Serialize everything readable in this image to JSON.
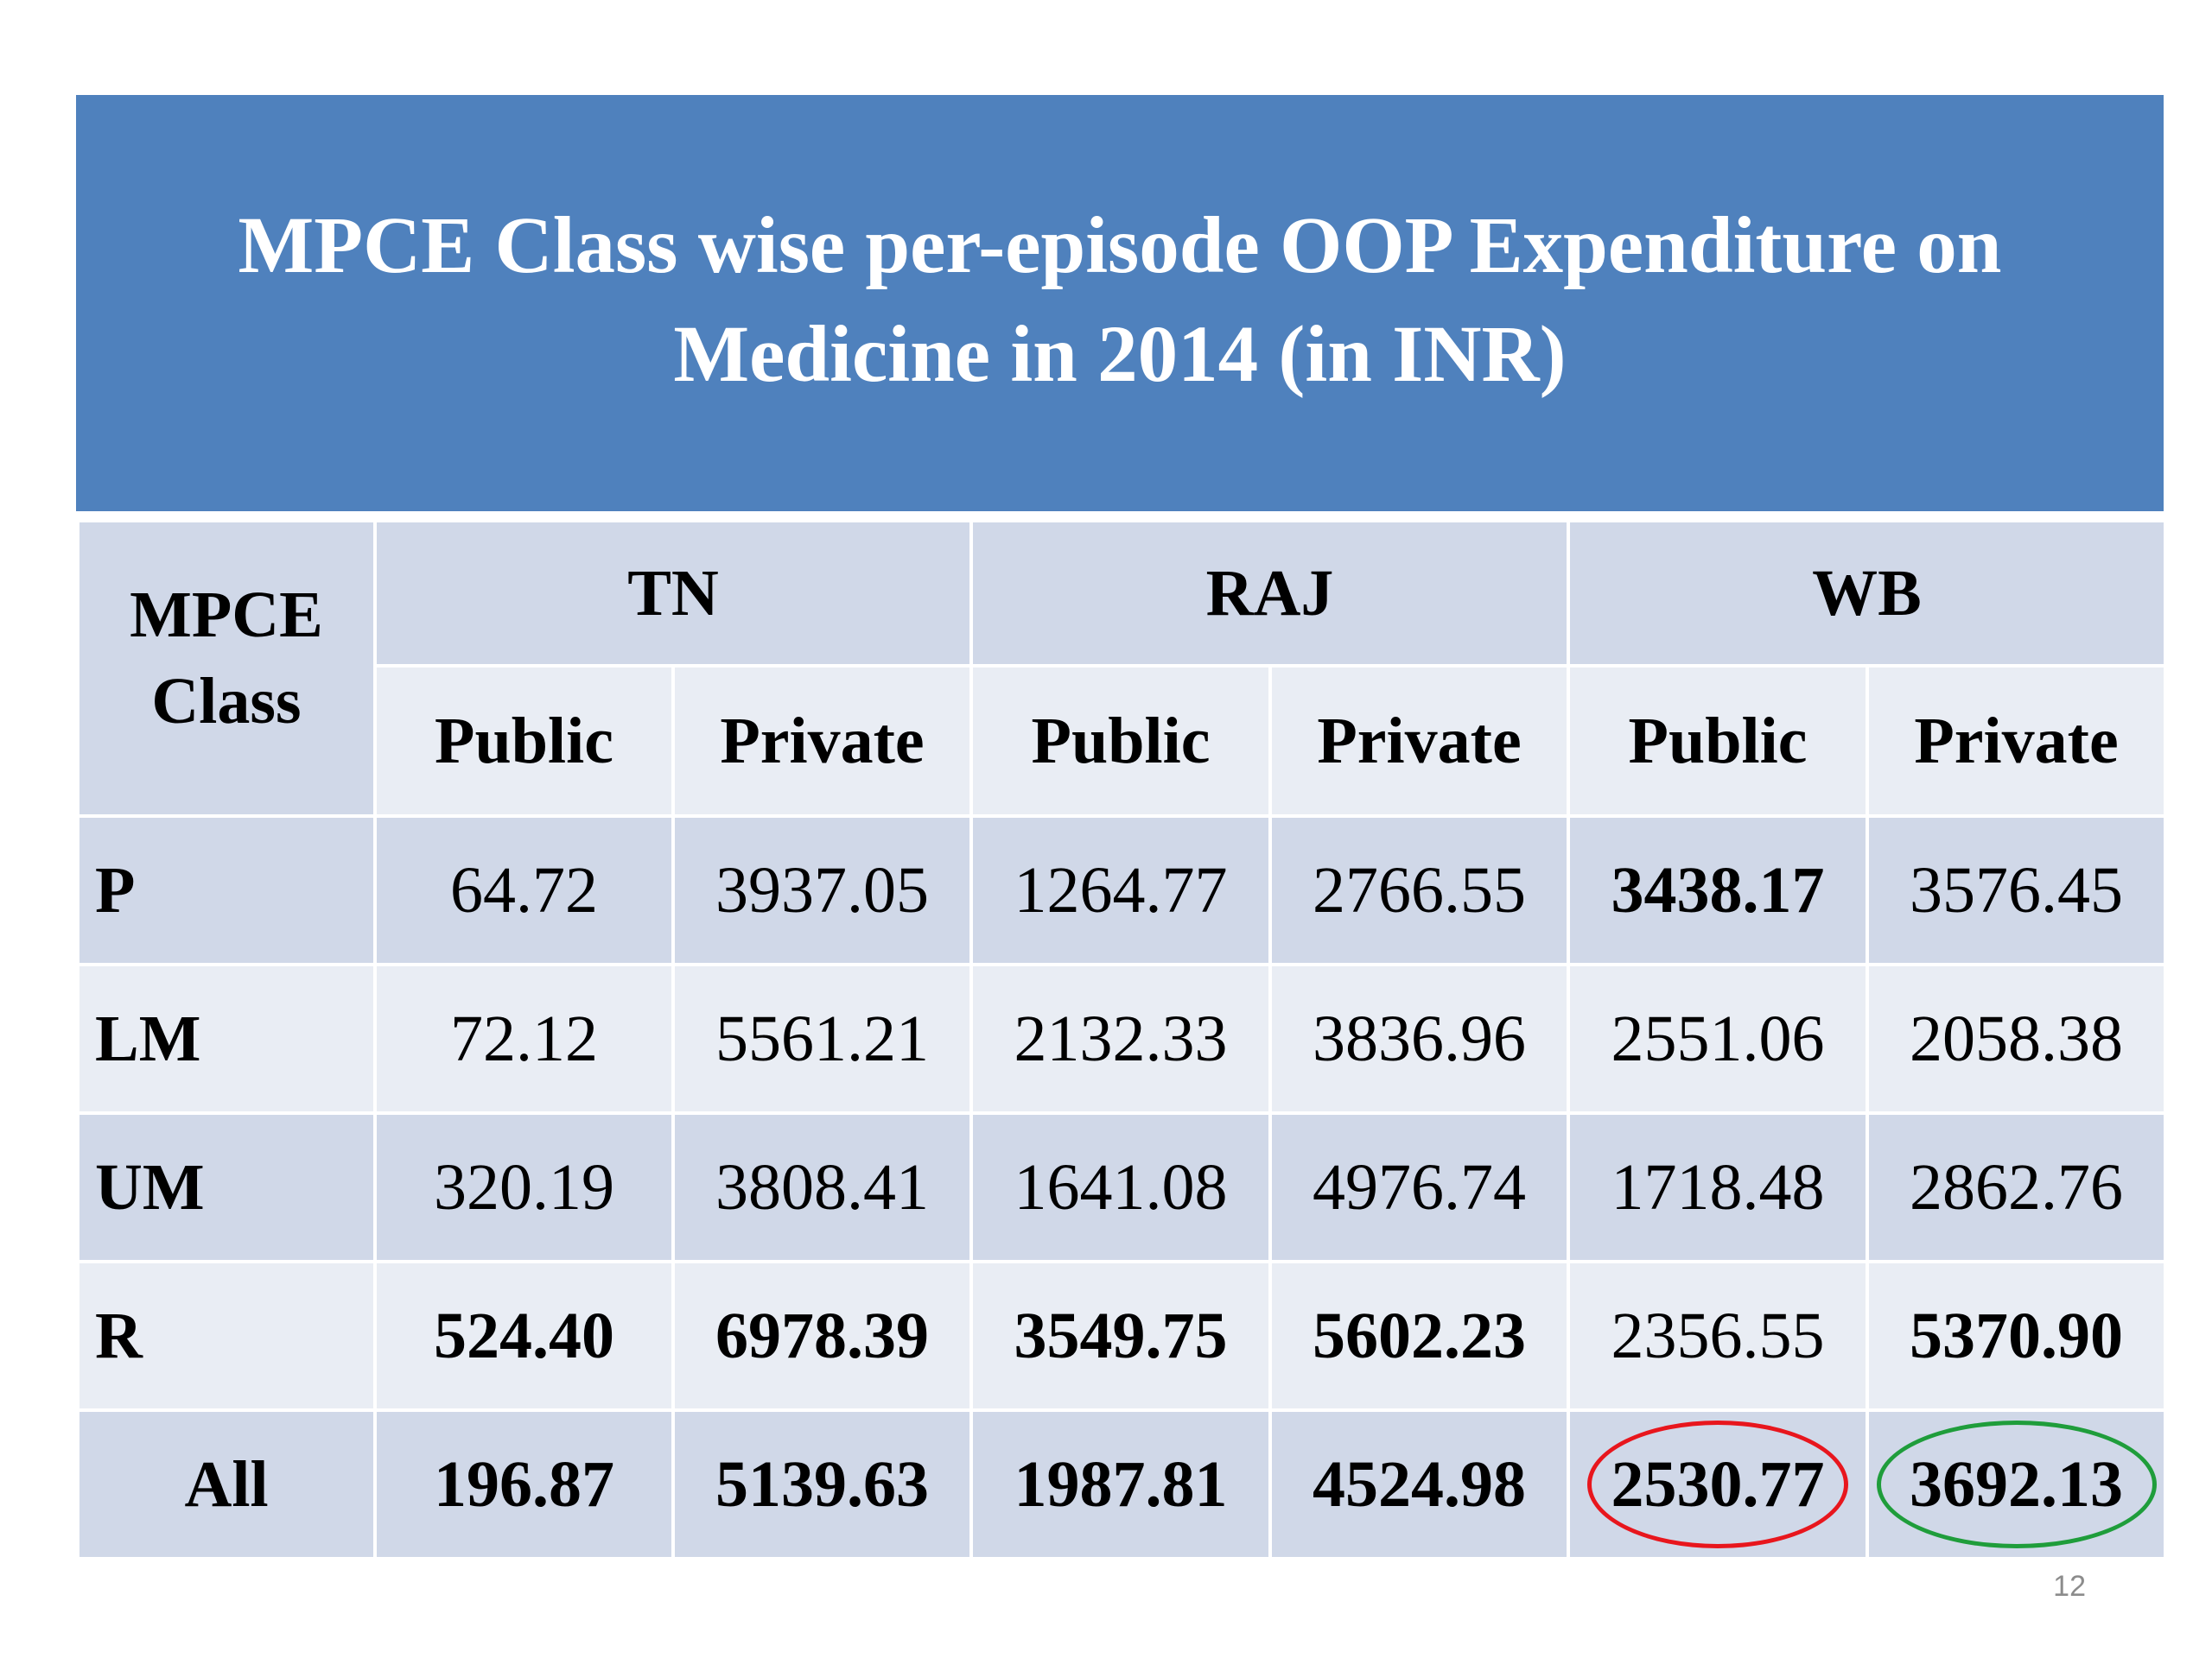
{
  "title": "MPCE Class wise per-episode OOP Expenditure on Medicine in 2014 (in INR)",
  "table": {
    "corner_header": "MPCE Class",
    "states": [
      "TN",
      "RAJ",
      "WB"
    ],
    "sub_headers": [
      "Public",
      "Private",
      "Public",
      "Private",
      "Public",
      "Private"
    ],
    "rows": [
      {
        "label": "P",
        "values": [
          "64.72",
          "3937.05",
          "1264.77",
          "2766.55",
          "3438.17",
          "3576.45"
        ],
        "bold": [
          false,
          false,
          false,
          false,
          true,
          false
        ]
      },
      {
        "label": "LM",
        "values": [
          "72.12",
          "5561.21",
          "2132.33",
          "3836.96",
          "2551.06",
          "2058.38"
        ],
        "bold": [
          false,
          false,
          false,
          false,
          false,
          false
        ]
      },
      {
        "label": "UM",
        "values": [
          "320.19",
          "3808.41",
          "1641.08",
          "4976.74",
          "1718.48",
          "2862.76"
        ],
        "bold": [
          false,
          false,
          false,
          false,
          false,
          false
        ]
      },
      {
        "label": "R",
        "values": [
          "524.40",
          "6978.39",
          "3549.75",
          "5602.23",
          "2356.55",
          "5370.90"
        ],
        "bold": [
          true,
          true,
          true,
          true,
          false,
          true
        ]
      },
      {
        "label": "All",
        "values": [
          "196.87",
          "5139.63",
          "1987.81",
          "4524.98",
          "2530.77",
          "3692.13"
        ],
        "bold": [
          true,
          true,
          true,
          true,
          true,
          true
        ]
      }
    ],
    "highlights": [
      {
        "row": 4,
        "col": 4,
        "color": "#e8161d"
      },
      {
        "row": 4,
        "col": 5,
        "color": "#1f9d3b"
      }
    ]
  },
  "slide_number": "12",
  "colors": {
    "banner": "#4f81bd",
    "cell_dark": "#d0d8e8",
    "cell_light": "#e9edf4"
  }
}
